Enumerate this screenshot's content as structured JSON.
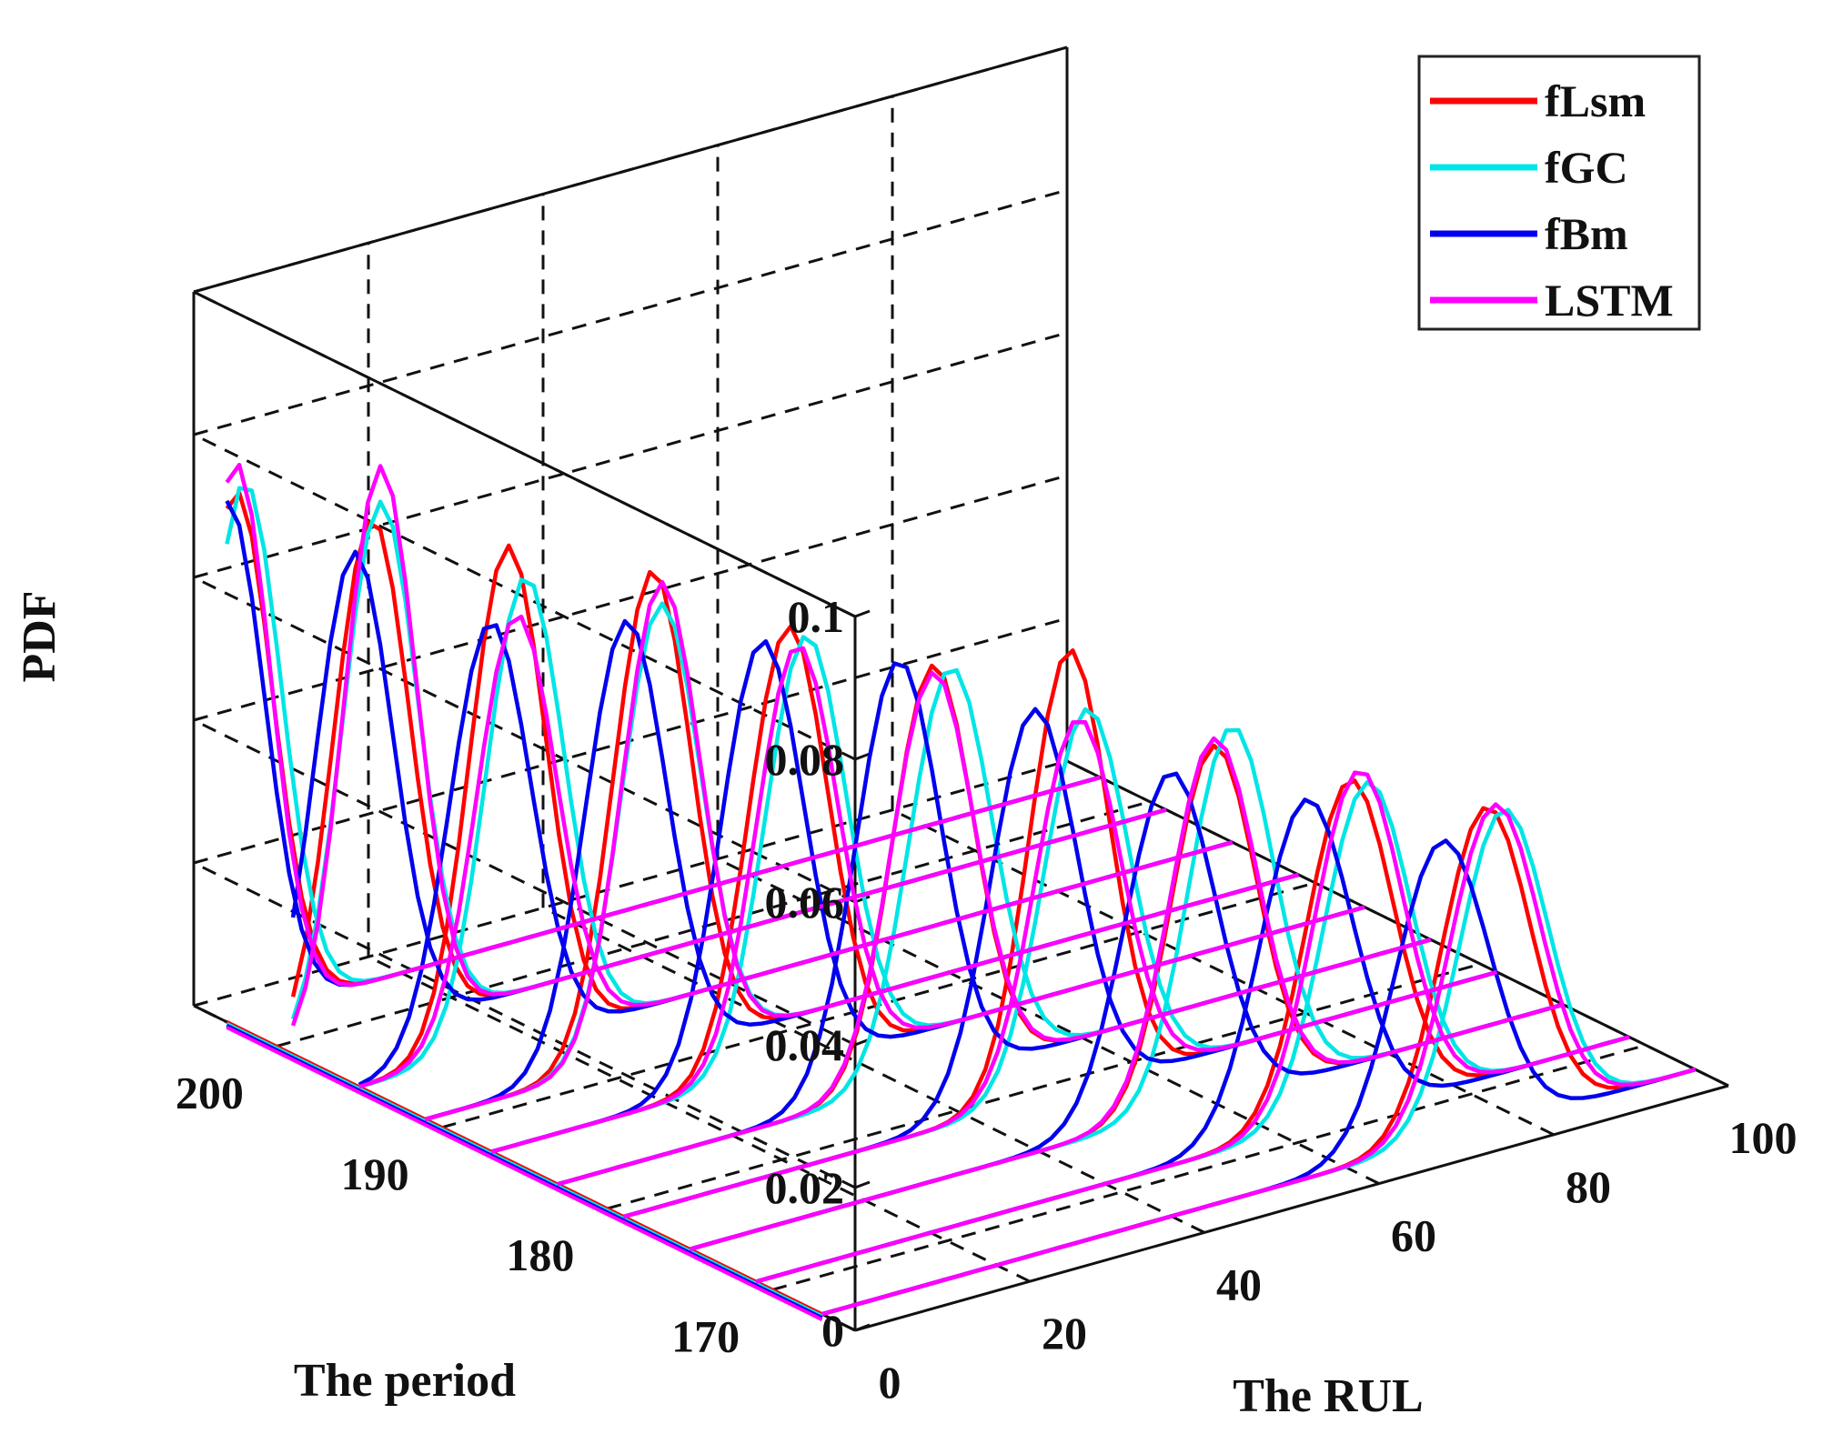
{
  "chart_data": {
    "type": "line",
    "projection": "3d",
    "title": "",
    "xlabel": "The RUL",
    "ylabel": "The period",
    "zlabel": "PDF",
    "xlim": [
      0,
      100
    ],
    "ylim": [
      165,
      205
    ],
    "zlim": [
      0,
      0.1
    ],
    "xticks": [
      0,
      20,
      40,
      60,
      80,
      100
    ],
    "yticks": [
      170,
      180,
      190,
      200
    ],
    "zticks": [
      0,
      0.02,
      0.04,
      0.06,
      0.08,
      0.1
    ],
    "xtick_labels": [
      "0",
      "20",
      "40",
      "60",
      "80",
      "100"
    ],
    "ytick_labels": [
      "170",
      "180",
      "190",
      "200"
    ],
    "ztick_labels": [
      "0",
      "0.02",
      "0.04",
      "0.06",
      "0.08",
      "0.1"
    ],
    "grid": true,
    "legend_position": "top-right",
    "periods": [
      203,
      199,
      195,
      191,
      187,
      183,
      179,
      175,
      171,
      167
    ],
    "series": [
      {
        "name": "fLsm",
        "color": "#ff0000",
        "peaks": [
          0.074,
          0.072,
          0.07,
          0.068,
          0.062,
          0.058,
          0.062,
          0.05,
          0.047,
          0.045
        ],
        "means": [
          1,
          9,
          17,
          26,
          34,
          43,
          51,
          60,
          68,
          76
        ],
        "sd": [
          4.2,
          4.3,
          4.3,
          4.4,
          4.5,
          4.6,
          4.5,
          4.8,
          4.9,
          5.0
        ]
      },
      {
        "name": "fGC",
        "color": "#00e5e5",
        "peaks": [
          0.075,
          0.074,
          0.065,
          0.063,
          0.06,
          0.057,
          0.053,
          0.052,
          0.046,
          0.044
        ],
        "means": [
          2,
          10,
          19,
          27,
          36,
          45,
          53,
          62,
          70,
          78
        ],
        "sd": [
          4.2,
          4.3,
          4.4,
          4.5,
          4.6,
          4.7,
          4.8,
          4.8,
          4.9,
          5.0
        ]
      },
      {
        "name": "fBm",
        "color": "#0000ee",
        "peaks": [
          0.073,
          0.068,
          0.06,
          0.062,
          0.061,
          0.06,
          0.055,
          0.048,
          0.046,
          0.042
        ],
        "means": [
          0,
          7,
          15,
          23,
          31,
          39,
          47,
          55,
          63,
          71
        ],
        "sd": [
          4.3,
          4.4,
          4.6,
          4.6,
          4.7,
          4.8,
          4.9,
          5.1,
          5.2,
          5.3
        ]
      },
      {
        "name": "LSTM",
        "color": "#ff00ff",
        "peaks": [
          0.078,
          0.079,
          0.06,
          0.066,
          0.059,
          0.057,
          0.052,
          0.051,
          0.048,
          0.045
        ],
        "means": [
          1,
          10,
          18,
          27,
          35,
          43,
          52,
          60,
          69,
          77
        ],
        "sd": [
          4.0,
          4.1,
          4.5,
          4.4,
          4.6,
          4.7,
          4.8,
          4.9,
          5.0,
          5.1
        ]
      }
    ]
  }
}
